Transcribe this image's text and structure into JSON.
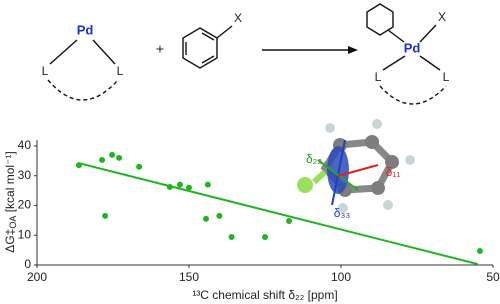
{
  "scheme": {
    "reactant_metal": "Pd",
    "reactant_ligands": [
      "L",
      "L"
    ],
    "plus": "+",
    "arene_group": "X",
    "product_metal": "Pd",
    "product_group": "X",
    "product_ligands": [
      "L",
      "L"
    ]
  },
  "inset": {
    "labels": [
      "δ₂₂",
      "δ₁₁",
      "δ₃₃"
    ]
  },
  "chart_data": {
    "type": "scatter",
    "x_label": "¹³C chemical shift δ₂₂ [ppm]",
    "y_label": {
      "main": "ΔG‡",
      "sub": "OA",
      "unit": " [kcal mol⁻¹]"
    },
    "x": [
      186.2,
      178.6,
      175.3,
      173,
      166.4,
      156.3,
      177.6,
      153,
      150,
      144.4,
      143.8,
      140,
      136,
      125,
      117.1,
      54.3
    ],
    "values": [
      33.5,
      35.3,
      37,
      36,
      33,
      26.2,
      16.5,
      27,
      26,
      15.5,
      27,
      16.5,
      9.4,
      9.4,
      14.8,
      4.7
    ],
    "color": "#22b422",
    "trendline": {
      "x": [
        186.5,
        55
      ],
      "values": [
        34.3,
        0.3
      ],
      "color": "#22b422"
    },
    "xlim": [
      200,
      50
    ],
    "xticks": [
      200,
      150,
      100,
      50
    ],
    "ylim": [
      0,
      42
    ],
    "yticks": [
      0,
      10,
      20,
      30,
      40
    ]
  }
}
